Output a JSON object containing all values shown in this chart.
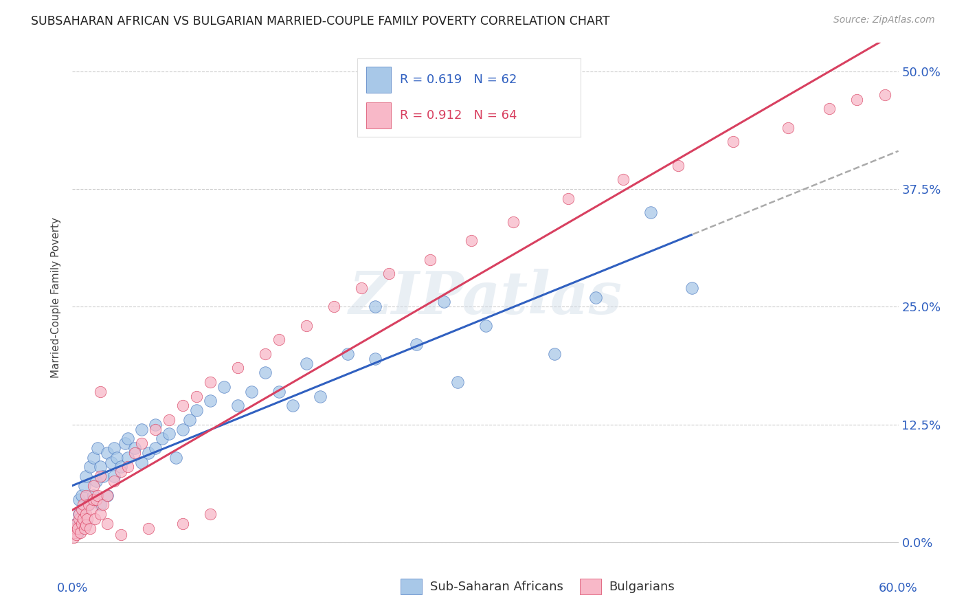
{
  "title": "SUBSAHARAN AFRICAN VS BULGARIAN MARRIED-COUPLE FAMILY POVERTY CORRELATION CHART",
  "source": "Source: ZipAtlas.com",
  "ylabel": "Married-Couple Family Poverty",
  "ytick_labels": [
    "0.0%",
    "12.5%",
    "25.0%",
    "37.5%",
    "50.0%"
  ],
  "ytick_values": [
    0.0,
    12.5,
    25.0,
    37.5,
    50.0
  ],
  "xlim": [
    0.0,
    60.0
  ],
  "ylim": [
    -1.0,
    53.0
  ],
  "blue_label": "Sub-Saharan Africans",
  "pink_label": "Bulgarians",
  "blue_color": "#a8c8e8",
  "pink_color": "#f8b8c8",
  "blue_edge_color": "#4878c0",
  "pink_edge_color": "#d84060",
  "blue_line_color": "#3060c0",
  "pink_line_color": "#d84060",
  "dash_color": "#aaaaaa",
  "watermark": "ZIPatlas",
  "blue_scatter_x": [
    0.2,
    0.3,
    0.4,
    0.5,
    0.5,
    0.6,
    0.7,
    0.8,
    0.9,
    1.0,
    1.0,
    1.2,
    1.3,
    1.5,
    1.5,
    1.7,
    1.8,
    2.0,
    2.0,
    2.2,
    2.5,
    2.5,
    2.8,
    3.0,
    3.0,
    3.2,
    3.5,
    3.8,
    4.0,
    4.0,
    4.5,
    5.0,
    5.0,
    5.5,
    6.0,
    6.0,
    6.5,
    7.0,
    7.5,
    8.0,
    8.5,
    9.0,
    10.0,
    11.0,
    12.0,
    13.0,
    14.0,
    15.0,
    16.0,
    17.0,
    18.0,
    20.0,
    22.0,
    25.0,
    28.0,
    30.0,
    35.0,
    38.0,
    42.0,
    45.0,
    22.0,
    27.0
  ],
  "blue_scatter_y": [
    1.5,
    2.0,
    1.0,
    3.0,
    4.5,
    2.5,
    5.0,
    3.5,
    6.0,
    2.0,
    7.0,
    4.0,
    8.0,
    5.0,
    9.0,
    6.5,
    10.0,
    4.0,
    8.0,
    7.0,
    9.5,
    5.0,
    8.5,
    7.0,
    10.0,
    9.0,
    8.0,
    10.5,
    9.0,
    11.0,
    10.0,
    8.5,
    12.0,
    9.5,
    10.0,
    12.5,
    11.0,
    11.5,
    9.0,
    12.0,
    13.0,
    14.0,
    15.0,
    16.5,
    14.5,
    16.0,
    18.0,
    16.0,
    14.5,
    19.0,
    15.5,
    20.0,
    19.5,
    21.0,
    17.0,
    23.0,
    20.0,
    26.0,
    35.0,
    27.0,
    25.0,
    25.5
  ],
  "pink_scatter_x": [
    0.1,
    0.2,
    0.2,
    0.3,
    0.3,
    0.4,
    0.5,
    0.5,
    0.6,
    0.7,
    0.7,
    0.8,
    0.8,
    0.9,
    1.0,
    1.0,
    1.0,
    1.1,
    1.2,
    1.3,
    1.4,
    1.5,
    1.5,
    1.6,
    1.7,
    1.8,
    2.0,
    2.0,
    2.2,
    2.5,
    2.5,
    3.0,
    3.5,
    4.0,
    4.5,
    5.0,
    6.0,
    7.0,
    8.0,
    9.0,
    10.0,
    12.0,
    14.0,
    15.0,
    17.0,
    19.0,
    21.0,
    23.0,
    26.0,
    29.0,
    32.0,
    36.0,
    40.0,
    44.0,
    48.0,
    52.0,
    55.0,
    57.0,
    59.0,
    2.0,
    3.5,
    5.5,
    8.0,
    10.0
  ],
  "pink_scatter_y": [
    0.5,
    1.0,
    1.5,
    2.0,
    0.8,
    1.5,
    2.5,
    3.0,
    1.0,
    2.0,
    3.5,
    2.5,
    4.0,
    1.5,
    3.0,
    5.0,
    1.8,
    2.5,
    4.0,
    1.5,
    3.5,
    4.5,
    6.0,
    2.5,
    4.5,
    5.0,
    3.0,
    7.0,
    4.0,
    5.0,
    2.0,
    6.5,
    7.5,
    8.0,
    9.5,
    10.5,
    12.0,
    13.0,
    14.5,
    15.5,
    17.0,
    18.5,
    20.0,
    21.5,
    23.0,
    25.0,
    27.0,
    28.5,
    30.0,
    32.0,
    34.0,
    36.5,
    38.5,
    40.0,
    42.5,
    44.0,
    46.0,
    47.0,
    47.5,
    16.0,
    0.8,
    1.5,
    2.0,
    3.0
  ]
}
